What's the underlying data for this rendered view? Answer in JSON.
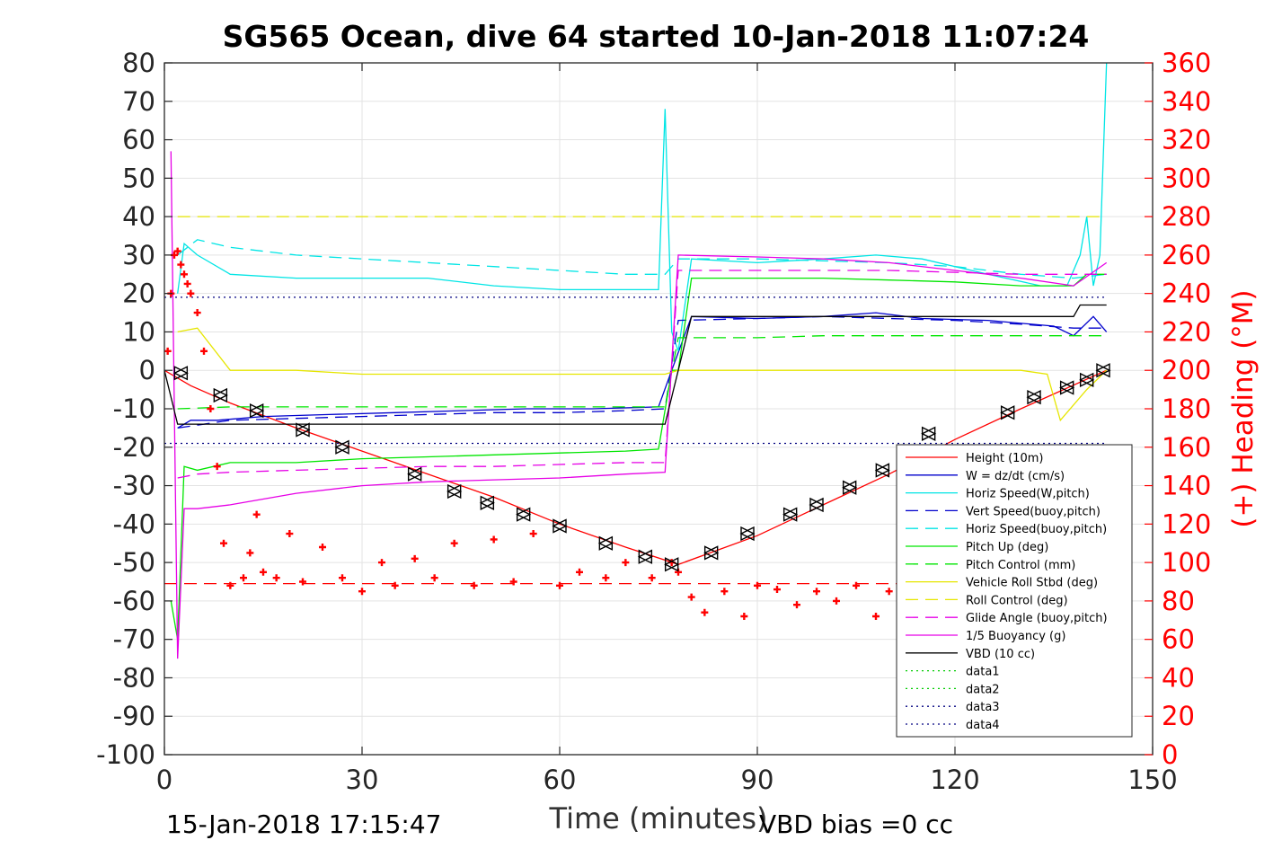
{
  "chart_data": {
    "type": "line",
    "title": "SG565 Ocean, dive 64 started 10-Jan-2018 11:07:24",
    "xlabel": "Time (minutes)",
    "ylabel_right": "(+) Heading (°M)",
    "xlim": [
      0,
      150
    ],
    "ylim": [
      -100,
      80
    ],
    "ylim_right": [
      0,
      360
    ],
    "x_ticks": [
      "0",
      "30",
      "60",
      "90",
      "120",
      "150"
    ],
    "y_ticks": [
      "-100",
      "-90",
      "-80",
      "-70",
      "-60",
      "-50",
      "-40",
      "-30",
      "-20",
      "-10",
      "0",
      "10",
      "20",
      "30",
      "40",
      "50",
      "60",
      "70",
      "80"
    ],
    "y_ticks_right": [
      "0",
      "20",
      "40",
      "60",
      "80",
      "100",
      "120",
      "140",
      "160",
      "180",
      "200",
      "220",
      "240",
      "260",
      "280",
      "300",
      "320",
      "340",
      "360"
    ],
    "grid": true,
    "legend_position": "lower-right",
    "footer_left": "15-Jan-2018 17:15:47",
    "footer_right": "VBD bias =0 cc",
    "series": [
      {
        "name": "Height (10m)",
        "color": "#ff0000",
        "style": "solid",
        "x": [
          0,
          4,
          10,
          20,
          30,
          40,
          50,
          60,
          70,
          78,
          90,
          100,
          110,
          120,
          130,
          143
        ],
        "y": [
          0,
          -4,
          -8.5,
          -15,
          -21,
          -27,
          -33,
          -40,
          -46,
          -50.5,
          -43,
          -35,
          -27,
          -18,
          -10,
          0
        ]
      },
      {
        "name": "W = dz/dt (cm/s)",
        "color": "#0000cc",
        "style": "solid",
        "x": [
          2,
          4,
          8,
          15,
          25,
          35,
          45,
          55,
          65,
          75,
          77,
          80,
          90,
          100,
          108,
          115,
          125,
          135,
          138,
          141,
          143
        ],
        "y": [
          -15,
          -13,
          -13,
          -12,
          -11.5,
          -11,
          -10.5,
          -10,
          -10,
          -9.5,
          0,
          14,
          13.5,
          14,
          15,
          13.5,
          13,
          11.5,
          9,
          14,
          10
        ]
      },
      {
        "name": "Horiz Speed(W,pitch)",
        "color": "#00e5e5",
        "style": "solid",
        "x": [
          2,
          3,
          5,
          10,
          20,
          30,
          40,
          50,
          60,
          70,
          75,
          76,
          77,
          78,
          80,
          90,
          100,
          108,
          115,
          125,
          133,
          137,
          139,
          140,
          141,
          142,
          143
        ],
        "y": [
          20,
          33,
          30,
          25,
          24,
          24,
          24,
          22,
          21,
          21,
          21,
          68,
          10,
          5,
          29,
          28,
          29,
          30,
          29,
          25,
          22,
          22,
          30,
          40,
          22,
          30,
          80
        ]
      },
      {
        "name": "Vert Speed(buoy,pitch)",
        "color": "#0000cc",
        "style": "dashed",
        "x": [
          2,
          10,
          20,
          30,
          40,
          50,
          60,
          70,
          76,
          78,
          90,
          100,
          110,
          120,
          130,
          138,
          143
        ],
        "y": [
          -15,
          -13,
          -12.5,
          -12,
          -11.5,
          -11,
          -11,
          -10.5,
          -10,
          13,
          13.5,
          14,
          13.5,
          13,
          12,
          11,
          11
        ]
      },
      {
        "name": "Horiz Speed(buoy,pitch)",
        "color": "#00e5e5",
        "style": "dashed",
        "x": [
          2,
          5,
          10,
          20,
          30,
          40,
          50,
          60,
          70,
          76,
          78,
          90,
          100,
          110,
          120,
          130,
          138,
          143
        ],
        "y": [
          30,
          34,
          32,
          30,
          29,
          28,
          27,
          26,
          25,
          25,
          29,
          29,
          28.5,
          28,
          27,
          25,
          24,
          25
        ]
      },
      {
        "name": "Pitch Up (deg)",
        "color": "#00e600",
        "style": "solid",
        "x": [
          1,
          2,
          3,
          5,
          10,
          20,
          30,
          40,
          50,
          60,
          70,
          75,
          77,
          78,
          80,
          90,
          100,
          110,
          120,
          130,
          138,
          140,
          143
        ],
        "y": [
          -60,
          -70,
          -25,
          -26,
          -24,
          -24,
          -23,
          -22.5,
          -22,
          -21.5,
          -21,
          -20.5,
          0,
          0,
          24,
          24,
          24,
          23.5,
          23,
          22,
          22,
          25,
          25
        ]
      },
      {
        "name": "Pitch Control (mm)",
        "color": "#00e600",
        "style": "dashed",
        "x": [
          2,
          10,
          20,
          30,
          40,
          50,
          60,
          70,
          76,
          78,
          90,
          100,
          110,
          120,
          130,
          138,
          143
        ],
        "y": [
          -10,
          -9.5,
          -9.5,
          -9.5,
          -9.5,
          -9.5,
          -9.5,
          -9.5,
          -9.5,
          8.5,
          8.5,
          9,
          9,
          9,
          9,
          9,
          9
        ]
      },
      {
        "name": "Vehicle Roll Stbd (deg)",
        "color": "#e6e600",
        "style": "solid",
        "x": [
          2,
          5,
          10,
          20,
          30,
          40,
          50,
          60,
          70,
          76,
          78,
          90,
          100,
          110,
          120,
          130,
          134,
          136,
          140,
          143
        ],
        "y": [
          10,
          11,
          0,
          0,
          -1,
          -1,
          -1,
          -1,
          -1,
          -1,
          0,
          0,
          0,
          0,
          0,
          0,
          -1,
          -13,
          -5,
          0
        ]
      },
      {
        "name": "Roll Control (deg)",
        "color": "#e6e600",
        "style": "dashed",
        "x": [
          2,
          10,
          20,
          30,
          40,
          50,
          60,
          70,
          76,
          78,
          90,
          100,
          110,
          120,
          130,
          143
        ],
        "y": [
          40,
          40,
          40,
          40,
          40,
          40,
          40,
          40,
          40,
          40,
          40,
          40,
          40,
          40,
          40,
          40
        ]
      },
      {
        "name": "Glide Angle (buoy,pitch)",
        "color": "#e600e6",
        "style": "dashed",
        "x": [
          2,
          5,
          10,
          20,
          30,
          40,
          50,
          60,
          70,
          76,
          78,
          90,
          100,
          110,
          120,
          130,
          138,
          143
        ],
        "y": [
          -28,
          -27,
          -26.5,
          -26,
          -25.5,
          -25,
          -25,
          -24.5,
          -24,
          -24,
          26,
          26,
          26,
          26,
          25.5,
          25,
          25,
          25
        ]
      },
      {
        "name": "1/5 Buoyancy (g)",
        "color": "#e600e6",
        "style": "solid",
        "x": [
          1,
          2,
          3,
          5,
          10,
          20,
          30,
          40,
          50,
          60,
          70,
          76,
          78,
          90,
          100,
          110,
          120,
          130,
          138,
          143
        ],
        "y": [
          57,
          -75,
          -36,
          -36,
          -35,
          -32,
          -30,
          -29,
          -28.5,
          -28,
          -27,
          -26.5,
          30,
          29.5,
          29,
          28,
          26,
          24,
          22,
          28
        ]
      },
      {
        "name": "VBD (10 cc)",
        "color": "#000000",
        "style": "solid",
        "x": [
          0,
          2,
          3,
          76,
          78,
          80,
          138,
          139,
          143
        ],
        "y": [
          0,
          -14,
          -14,
          -14,
          0,
          14,
          14,
          17,
          17
        ]
      },
      {
        "name": "data1",
        "color": "#00cc00",
        "style": "dotted",
        "x": [],
        "y": []
      },
      {
        "name": "data2",
        "color": "#00cc00",
        "style": "dotted",
        "x": [],
        "y": []
      },
      {
        "name": "data3",
        "color": "#000080",
        "style": "dotted",
        "x": [
          0,
          143
        ],
        "y": [
          19,
          19
        ]
      },
      {
        "name": "data4",
        "color": "#000080",
        "style": "dotted",
        "x": [
          0,
          143
        ],
        "y": [
          -19,
          -19
        ]
      }
    ],
    "heading_series": {
      "name": "Heading",
      "color": "#ff0000",
      "x": [
        0.5,
        1,
        1.5,
        2,
        2.5,
        3,
        3.5,
        4,
        5,
        6,
        7,
        8,
        9,
        10,
        12,
        13,
        14,
        15,
        17,
        19,
        21,
        24,
        27,
        30,
        33,
        35,
        38,
        41,
        44,
        47,
        50,
        53,
        56,
        60,
        63,
        67,
        70,
        74,
        77,
        78,
        80,
        82,
        85,
        88,
        90,
        93,
        96,
        99,
        102,
        105,
        108,
        110,
        113,
        116
      ],
      "y": [
        210,
        240,
        260,
        262,
        255,
        250,
        245,
        240,
        230,
        210,
        180,
        150,
        110,
        88,
        92,
        105,
        125,
        95,
        92,
        115,
        90,
        108,
        92,
        85,
        100,
        88,
        102,
        92,
        110,
        88,
        112,
        90,
        115,
        88,
        95,
        92,
        100,
        92,
        100,
        95,
        82,
        74,
        85,
        72,
        88,
        86,
        78,
        85,
        80,
        88,
        72,
        85,
        80,
        82
      ]
    },
    "reference_line": {
      "name": "Heading reference",
      "color": "#ff0000",
      "style": "dashed",
      "x": [
        0,
        143
      ],
      "y": [
        -55.5,
        -55.5
      ]
    },
    "markers": {
      "color": "#000000",
      "x": [
        2.5,
        8.5,
        14,
        21,
        27,
        38,
        44,
        49,
        54.5,
        60,
        67,
        73,
        77,
        83,
        88.5,
        95,
        99,
        104,
        109,
        116,
        128,
        132,
        137,
        140,
        142.5
      ],
      "y": [
        -0.7,
        -6.5,
        -10.5,
        -15.5,
        -20,
        -27,
        -31.5,
        -34.5,
        -37.5,
        -40.5,
        -45,
        -48.5,
        -50.5,
        -47.5,
        -42.5,
        -37.5,
        -35,
        -30.5,
        -26,
        -16.5,
        -11,
        -7,
        -4.5,
        -2.5,
        0
      ]
    }
  }
}
